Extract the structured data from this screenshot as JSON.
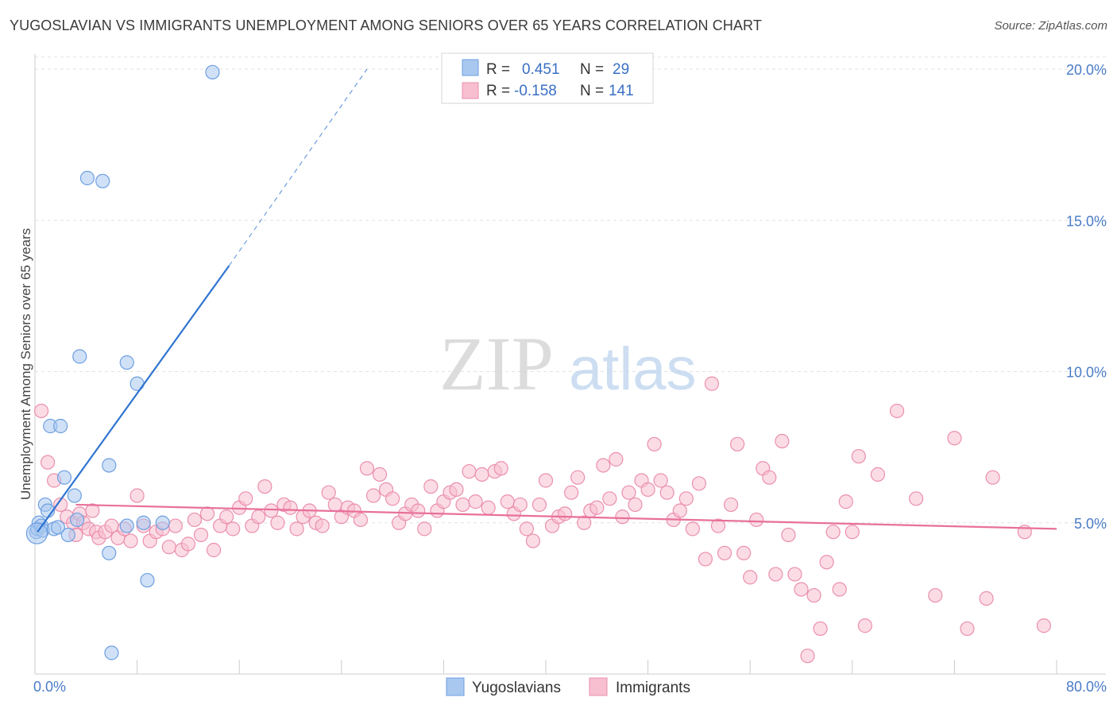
{
  "title": "YUGOSLAVIAN VS IMMIGRANTS UNEMPLOYMENT AMONG SENIORS OVER 65 YEARS CORRELATION CHART",
  "source": "Source: ZipAtlas.com",
  "watermark": {
    "zip": "ZIP",
    "atlas": "atlas"
  },
  "legend": {
    "rows": [
      {
        "r_label": "R =",
        "r_value": "0.451",
        "n_label": "N =",
        "n_value": "29"
      },
      {
        "r_label": "R =",
        "r_value": "-0.158",
        "n_label": "N =",
        "n_value": "141"
      }
    ]
  },
  "bottom_legend": [
    "Yugoslavians",
    "Immigrants"
  ],
  "colors": {
    "blue_fill": "#a9c8f0",
    "blue_stroke": "#6d9fe0",
    "blue_line": "#2f74d0",
    "pink_fill": "#f7bfd0",
    "pink_stroke": "#eb8fae",
    "pink_line": "#e8709a",
    "grid": "#e2e2e2",
    "axis": "#cccccc"
  },
  "chart_data": {
    "type": "scatter",
    "title": "YUGOSLAVIAN VS IMMIGRANTS UNEMPLOYMENT AMONG SENIORS OVER 65 YEARS CORRELATION CHART",
    "xlabel": "",
    "ylabel": "Unemployment Among Seniors over 65 years",
    "xlim": [
      0,
      80
    ],
    "ylim": [
      0,
      20.5
    ],
    "x_tick_labels": [
      "0.0%",
      "80.0%"
    ],
    "y_ticks": [
      5,
      10,
      15,
      20
    ],
    "y_tick_labels": [
      "5.0%",
      "10.0%",
      "15.0%",
      "20.0%"
    ],
    "series": [
      {
        "name": "Yugoslavians",
        "r": 0.451,
        "n": 29,
        "trend": {
          "x0": 0.2,
          "y0": 4.7,
          "x1": 15.2,
          "y1": 13.5,
          "dash_x1": 26.0,
          "dash_y1": 20.0
        },
        "points": [
          [
            0.1,
            4.7
          ],
          [
            0.2,
            4.8
          ],
          [
            0.3,
            5.0
          ],
          [
            0.5,
            4.9
          ],
          [
            0.6,
            4.75
          ],
          [
            0.8,
            5.6
          ],
          [
            1.0,
            5.4
          ],
          [
            1.2,
            8.2
          ],
          [
            1.5,
            4.8
          ],
          [
            1.8,
            4.85
          ],
          [
            2.0,
            8.2
          ],
          [
            2.3,
            6.5
          ],
          [
            2.6,
            4.6
          ],
          [
            3.1,
            5.9
          ],
          [
            3.3,
            5.1
          ],
          [
            3.5,
            10.5
          ],
          [
            4.1,
            16.4
          ],
          [
            5.3,
            16.3
          ],
          [
            5.8,
            6.9
          ],
          [
            5.8,
            4.0
          ],
          [
            6.0,
            0.7
          ],
          [
            7.2,
            10.3
          ],
          [
            7.2,
            4.9
          ],
          [
            8.0,
            9.6
          ],
          [
            8.5,
            5.0
          ],
          [
            8.8,
            3.1
          ],
          [
            10.0,
            5.0
          ],
          [
            13.9,
            19.9
          ],
          [
            0.15,
            4.65
          ]
        ]
      },
      {
        "name": "Immigrants",
        "r": -0.158,
        "n": 141,
        "trend": {
          "x0": 3.2,
          "y0": 5.6,
          "x1": 80.0,
          "y1": 4.8
        },
        "points": [
          [
            0.5,
            8.7
          ],
          [
            1.0,
            7.0
          ],
          [
            1.5,
            6.4
          ],
          [
            2.0,
            5.6
          ],
          [
            2.5,
            5.2
          ],
          [
            3.0,
            5.0
          ],
          [
            3.2,
            4.6
          ],
          [
            3.5,
            5.3
          ],
          [
            3.8,
            5.0
          ],
          [
            4.2,
            4.8
          ],
          [
            4.5,
            5.4
          ],
          [
            4.8,
            4.7
          ],
          [
            5.0,
            4.5
          ],
          [
            5.5,
            4.7
          ],
          [
            6.0,
            4.9
          ],
          [
            6.5,
            4.5
          ],
          [
            7.0,
            4.8
          ],
          [
            7.5,
            4.4
          ],
          [
            8.0,
            5.9
          ],
          [
            8.5,
            4.9
          ],
          [
            9.0,
            4.4
          ],
          [
            9.5,
            4.7
          ],
          [
            10.0,
            4.8
          ],
          [
            10.5,
            4.2
          ],
          [
            11.0,
            4.9
          ],
          [
            11.5,
            4.1
          ],
          [
            12.0,
            4.3
          ],
          [
            12.5,
            5.1
          ],
          [
            13.0,
            4.6
          ],
          [
            13.5,
            5.3
          ],
          [
            14.0,
            4.1
          ],
          [
            14.5,
            4.9
          ],
          [
            15.0,
            5.2
          ],
          [
            15.5,
            4.8
          ],
          [
            16.0,
            5.5
          ],
          [
            16.5,
            5.8
          ],
          [
            17.0,
            4.9
          ],
          [
            17.5,
            5.2
          ],
          [
            18.0,
            6.2
          ],
          [
            18.5,
            5.4
          ],
          [
            19.0,
            5.0
          ],
          [
            19.5,
            5.6
          ],
          [
            20.0,
            5.5
          ],
          [
            20.5,
            4.8
          ],
          [
            21.0,
            5.2
          ],
          [
            21.5,
            5.4
          ],
          [
            22.0,
            5.0
          ],
          [
            22.5,
            4.9
          ],
          [
            23.0,
            6.0
          ],
          [
            23.5,
            5.6
          ],
          [
            24.0,
            5.2
          ],
          [
            24.5,
            5.5
          ],
          [
            25.0,
            5.4
          ],
          [
            25.5,
            5.1
          ],
          [
            26.0,
            6.8
          ],
          [
            26.5,
            5.9
          ],
          [
            27.0,
            6.6
          ],
          [
            27.5,
            6.1
          ],
          [
            28.0,
            5.8
          ],
          [
            28.5,
            5.0
          ],
          [
            29.0,
            5.3
          ],
          [
            29.5,
            5.6
          ],
          [
            30.0,
            5.4
          ],
          [
            30.5,
            4.8
          ],
          [
            31.0,
            6.2
          ],
          [
            31.5,
            5.4
          ],
          [
            32.0,
            5.7
          ],
          [
            32.5,
            6.0
          ],
          [
            33.0,
            6.1
          ],
          [
            33.5,
            5.6
          ],
          [
            34.0,
            6.7
          ],
          [
            34.5,
            5.7
          ],
          [
            35.0,
            6.6
          ],
          [
            35.5,
            5.5
          ],
          [
            36.0,
            6.7
          ],
          [
            36.5,
            6.8
          ],
          [
            37.0,
            5.7
          ],
          [
            37.5,
            5.3
          ],
          [
            38.0,
            5.6
          ],
          [
            38.5,
            4.8
          ],
          [
            39.0,
            4.4
          ],
          [
            39.5,
            5.6
          ],
          [
            40.0,
            6.4
          ],
          [
            40.5,
            4.9
          ],
          [
            41.0,
            5.2
          ],
          [
            41.5,
            5.3
          ],
          [
            42.0,
            6.0
          ],
          [
            42.5,
            6.5
          ],
          [
            43.0,
            5.0
          ],
          [
            43.5,
            5.4
          ],
          [
            44.0,
            5.5
          ],
          [
            44.5,
            6.9
          ],
          [
            45.0,
            5.8
          ],
          [
            45.5,
            7.1
          ],
          [
            46.0,
            5.2
          ],
          [
            46.5,
            6.0
          ],
          [
            47.0,
            5.6
          ],
          [
            47.5,
            6.4
          ],
          [
            48.0,
            6.1
          ],
          [
            48.5,
            7.6
          ],
          [
            49.0,
            6.4
          ],
          [
            49.5,
            6.0
          ],
          [
            50.0,
            5.1
          ],
          [
            50.5,
            5.4
          ],
          [
            51.0,
            5.8
          ],
          [
            51.5,
            4.8
          ],
          [
            52.0,
            6.3
          ],
          [
            52.5,
            3.8
          ],
          [
            53.0,
            9.6
          ],
          [
            53.5,
            4.9
          ],
          [
            54.0,
            4.0
          ],
          [
            54.5,
            5.6
          ],
          [
            55.0,
            7.6
          ],
          [
            55.5,
            4.0
          ],
          [
            56.0,
            3.2
          ],
          [
            56.5,
            5.1
          ],
          [
            57.0,
            6.8
          ],
          [
            57.5,
            6.5
          ],
          [
            58.0,
            3.3
          ],
          [
            58.5,
            7.7
          ],
          [
            59.0,
            4.6
          ],
          [
            59.5,
            3.3
          ],
          [
            60.0,
            2.8
          ],
          [
            60.5,
            0.6
          ],
          [
            61.0,
            2.6
          ],
          [
            61.5,
            1.5
          ],
          [
            62.0,
            3.7
          ],
          [
            62.5,
            4.7
          ],
          [
            63.0,
            2.8
          ],
          [
            63.5,
            5.7
          ],
          [
            64.0,
            4.7
          ],
          [
            64.5,
            7.2
          ],
          [
            65.0,
            1.6
          ],
          [
            66.0,
            6.6
          ],
          [
            67.5,
            8.7
          ],
          [
            69.0,
            5.8
          ],
          [
            70.5,
            2.6
          ],
          [
            72.0,
            7.8
          ],
          [
            73.0,
            1.5
          ],
          [
            74.5,
            2.5
          ],
          [
            75.0,
            6.5
          ],
          [
            77.5,
            4.7
          ],
          [
            79.0,
            1.6
          ]
        ]
      }
    ]
  }
}
